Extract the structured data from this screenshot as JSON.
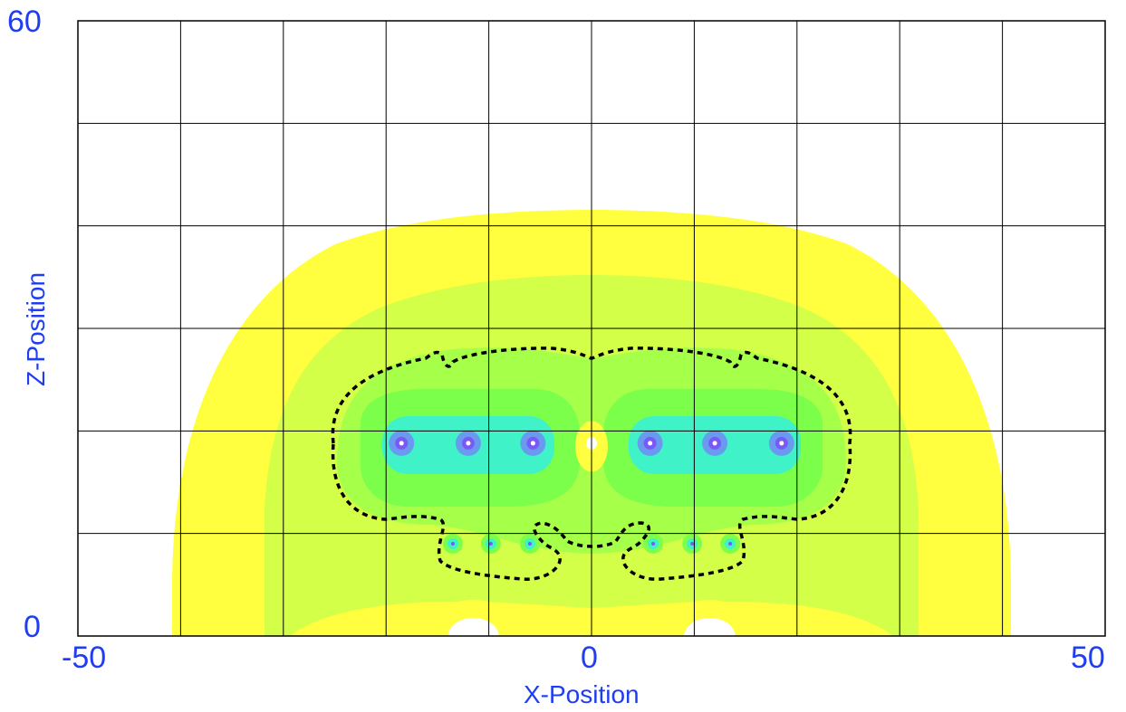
{
  "chart_data": {
    "type": "heatmap",
    "xlabel": "X-Position",
    "ylabel": "Z-Position",
    "xlim": [
      -50,
      50
    ],
    "ylim": [
      0,
      60
    ],
    "x_ticks": [
      "-50",
      "0",
      "50"
    ],
    "y_ticks": [
      "0",
      "60"
    ],
    "grid": true,
    "grid_x": [
      -40,
      -30,
      -20,
      -10,
      0,
      10,
      20,
      30,
      40
    ],
    "grid_z": [
      10,
      20,
      30,
      40,
      50
    ],
    "contour_style": "dashed black",
    "colors": {
      "background": "#ffffff",
      "outer_band": "#ffff3f",
      "mid_band": "#d4ff48",
      "inner_band": "#a6ff48",
      "core_band": "#7cff4a",
      "cyan_band": "#3ff2c8",
      "source_ring": "#6a9af0",
      "source_core": "#7a5af5",
      "grid": "#000000",
      "label": "#1f3df2"
    },
    "sources_upper": [
      {
        "x": -18.5,
        "z": 18.8
      },
      {
        "x": -12,
        "z": 18.8
      },
      {
        "x": -5.7,
        "z": 18.8
      },
      {
        "x": 5.7,
        "z": 18.8
      },
      {
        "x": 12,
        "z": 18.8
      },
      {
        "x": 18.5,
        "z": 18.8
      }
    ],
    "sources_lower": [
      {
        "x": -13.5,
        "z": 9
      },
      {
        "x": -9.8,
        "z": 9
      },
      {
        "x": -6,
        "z": 9
      },
      {
        "x": 6,
        "z": 9
      },
      {
        "x": 9.8,
        "z": 9
      },
      {
        "x": 13.5,
        "z": 9
      }
    ]
  }
}
